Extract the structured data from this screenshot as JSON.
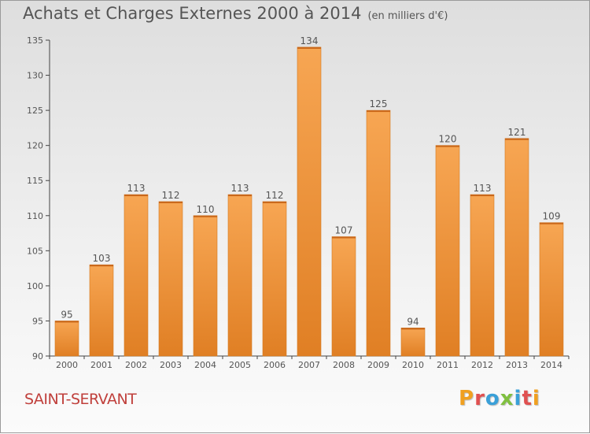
{
  "header": {
    "title": "Achats et Charges Externes 2000 à 2014",
    "unit": "(en milliers d'€)"
  },
  "footer": {
    "town": "SAINT-SERVANT",
    "brand": "Proxiti"
  },
  "colors": {
    "bar_light": "#f5a14f",
    "bar_dark": "#e07f24",
    "text": "#555555",
    "town": "#c0403c",
    "brand_letters": [
      "#f0a020",
      "#e05050",
      "#3aa0d8",
      "#80c040",
      "#3aa0d8",
      "#e05050",
      "#f0a020"
    ]
  },
  "chart_data": {
    "type": "bar",
    "categories": [
      "2000",
      "2001",
      "2002",
      "2003",
      "2004",
      "2005",
      "2006",
      "2007",
      "2008",
      "2009",
      "2010",
      "2011",
      "2012",
      "2013",
      "2014"
    ],
    "values": [
      95,
      103,
      113,
      112,
      110,
      113,
      112,
      134,
      107,
      125,
      94,
      120,
      113,
      121,
      109
    ],
    "ylim": [
      90,
      135
    ],
    "yticks": [
      90,
      95,
      100,
      105,
      110,
      115,
      120,
      125,
      130,
      135
    ],
    "grid": false,
    "data_labels": true
  }
}
